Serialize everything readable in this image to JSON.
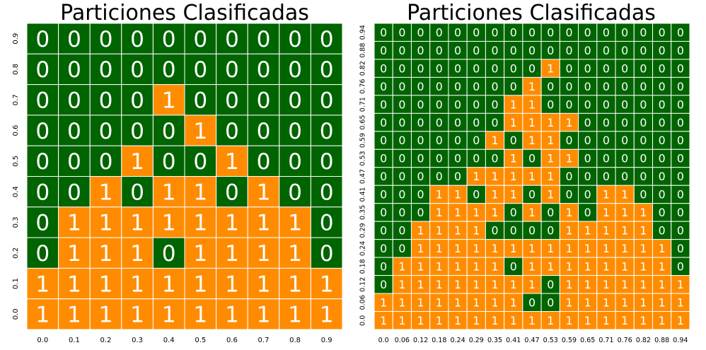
{
  "colors": {
    "zero": "#006400",
    "one": "#ff8c00",
    "text": "#ffffff",
    "grid": "#ffffff"
  },
  "chart_data": [
    {
      "type": "heatmap",
      "title": "Particiones Clasificadas",
      "xlabel": "",
      "ylabel": "",
      "x_ticks": [
        "0.0",
        "0.1",
        "0.2",
        "0.3",
        "0.4",
        "0.5",
        "0.6",
        "0.7",
        "0.8",
        "0.9"
      ],
      "y_ticks": [
        "0.9",
        "0.8",
        "0.7",
        "0.6",
        "0.5",
        "0.4",
        "0.3",
        "0.2",
        "0.1",
        "0.0"
      ],
      "values": [
        [
          0,
          0,
          0,
          0,
          0,
          0,
          0,
          0,
          0,
          0
        ],
        [
          0,
          0,
          0,
          0,
          0,
          0,
          0,
          0,
          0,
          0
        ],
        [
          0,
          0,
          0,
          0,
          1,
          0,
          0,
          0,
          0,
          0
        ],
        [
          0,
          0,
          0,
          0,
          0,
          1,
          0,
          0,
          0,
          0
        ],
        [
          0,
          0,
          0,
          1,
          0,
          0,
          1,
          0,
          0,
          0
        ],
        [
          0,
          0,
          1,
          0,
          1,
          1,
          0,
          1,
          0,
          0
        ],
        [
          0,
          1,
          1,
          1,
          1,
          1,
          1,
          1,
          1,
          0
        ],
        [
          0,
          1,
          1,
          1,
          0,
          1,
          1,
          1,
          1,
          0
        ],
        [
          1,
          1,
          1,
          1,
          1,
          1,
          1,
          1,
          1,
          1
        ],
        [
          1,
          1,
          1,
          1,
          1,
          1,
          1,
          1,
          1,
          1
        ]
      ]
    },
    {
      "type": "heatmap",
      "title": "Particiones Clasificadas",
      "xlabel": "",
      "ylabel": "",
      "x_ticks": [
        "0.0",
        "0.06",
        "0.12",
        "0.18",
        "0.24",
        "0.29",
        "0.35",
        "0.41",
        "0.47",
        "0.53",
        "0.59",
        "0.65",
        "0.71",
        "0.76",
        "0.82",
        "0.88",
        "0.94"
      ],
      "y_ticks": [
        "0.94",
        "0.88",
        "0.82",
        "0.76",
        "0.71",
        "0.65",
        "0.59",
        "0.53",
        "0.47",
        "0.41",
        "0.35",
        "0.29",
        "0.24",
        "0.18",
        "0.12",
        "0.06",
        "0.0"
      ],
      "values": [
        [
          0,
          0,
          0,
          0,
          0,
          0,
          0,
          0,
          0,
          0,
          0,
          0,
          0,
          0,
          0,
          0,
          0
        ],
        [
          0,
          0,
          0,
          0,
          0,
          0,
          0,
          0,
          0,
          0,
          0,
          0,
          0,
          0,
          0,
          0,
          0
        ],
        [
          0,
          0,
          0,
          0,
          0,
          0,
          0,
          0,
          0,
          1,
          0,
          0,
          0,
          0,
          0,
          0,
          0
        ],
        [
          0,
          0,
          0,
          0,
          0,
          0,
          0,
          0,
          1,
          0,
          0,
          0,
          0,
          0,
          0,
          0,
          0
        ],
        [
          0,
          0,
          0,
          0,
          0,
          0,
          0,
          1,
          1,
          0,
          0,
          0,
          0,
          0,
          0,
          0,
          0
        ],
        [
          0,
          0,
          0,
          0,
          0,
          0,
          0,
          1,
          1,
          1,
          1,
          0,
          0,
          0,
          0,
          0,
          0
        ],
        [
          0,
          0,
          0,
          0,
          0,
          0,
          1,
          0,
          1,
          1,
          0,
          0,
          0,
          0,
          0,
          0,
          0
        ],
        [
          0,
          0,
          0,
          0,
          0,
          0,
          0,
          1,
          0,
          1,
          1,
          0,
          0,
          0,
          0,
          0,
          0
        ],
        [
          0,
          0,
          0,
          0,
          0,
          1,
          1,
          1,
          1,
          1,
          0,
          0,
          0,
          0,
          0,
          0,
          0
        ],
        [
          0,
          0,
          0,
          1,
          1,
          0,
          1,
          1,
          0,
          1,
          0,
          0,
          1,
          1,
          0,
          0,
          0
        ],
        [
          0,
          0,
          0,
          1,
          1,
          1,
          1,
          0,
          1,
          0,
          1,
          0,
          1,
          1,
          1,
          0,
          0
        ],
        [
          0,
          0,
          1,
          1,
          1,
          1,
          0,
          0,
          0,
          0,
          1,
          1,
          1,
          1,
          1,
          0,
          0
        ],
        [
          0,
          0,
          1,
          1,
          1,
          1,
          1,
          1,
          1,
          1,
          1,
          1,
          1,
          1,
          1,
          1,
          0
        ],
        [
          0,
          1,
          1,
          1,
          1,
          1,
          1,
          0,
          1,
          1,
          1,
          1,
          1,
          1,
          1,
          1,
          0
        ],
        [
          0,
          1,
          1,
          1,
          1,
          1,
          1,
          1,
          1,
          0,
          1,
          1,
          1,
          1,
          1,
          1,
          1
        ],
        [
          1,
          1,
          1,
          1,
          1,
          1,
          1,
          1,
          0,
          0,
          1,
          1,
          1,
          1,
          1,
          1,
          1
        ],
        [
          1,
          1,
          1,
          1,
          1,
          1,
          1,
          1,
          1,
          1,
          1,
          1,
          1,
          1,
          1,
          1,
          1
        ]
      ]
    }
  ]
}
